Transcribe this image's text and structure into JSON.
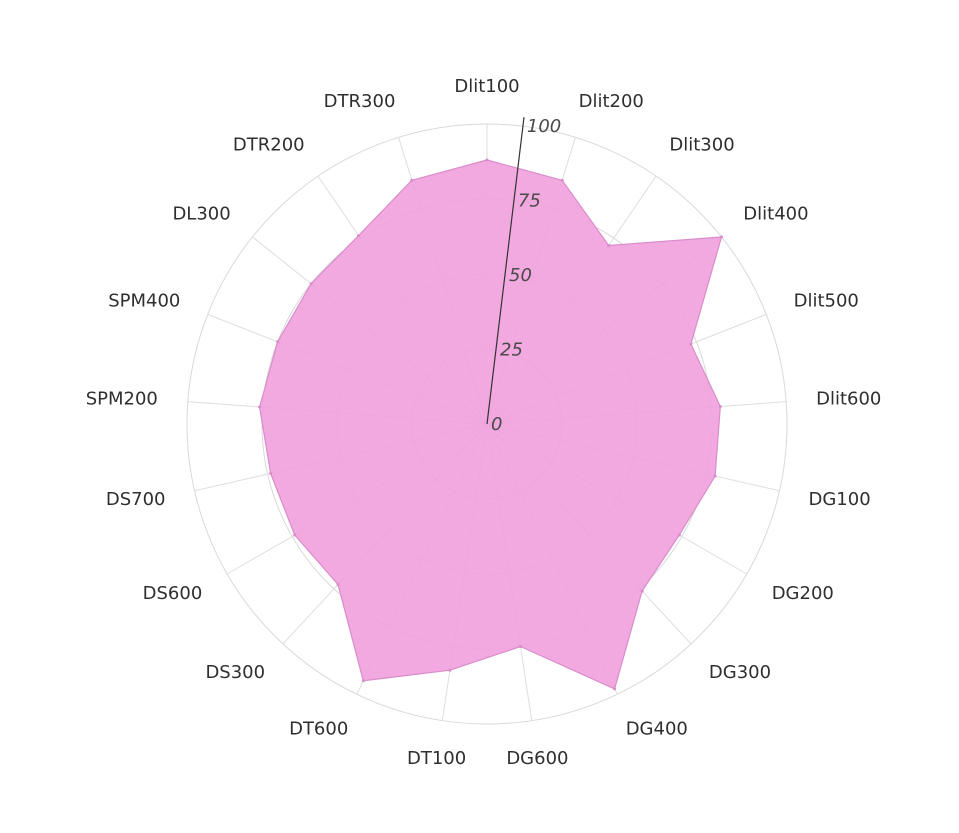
{
  "chart_data": {
    "type": "radar",
    "categories": [
      "Dlit100",
      "Dlit200",
      "Dlit300",
      "Dlit400",
      "Dlit500",
      "Dlit600",
      "DG100",
      "DG200",
      "DG300",
      "DG400",
      "DG600",
      "DT100",
      "DT600",
      "DS300",
      "DS600",
      "DS700",
      "SPM200",
      "SPM400",
      "DL300",
      "DTR200",
      "DTR300"
    ],
    "series": [
      {
        "values": [
          88,
          85,
          72,
          100,
          73,
          78,
          78,
          74,
          76,
          98,
          75,
          83,
          95,
          73,
          74,
          74,
          76,
          75,
          75,
          76,
          85
        ],
        "color": "#f0a0dc"
      }
    ],
    "ticks": [
      "0",
      "25",
      "50",
      "75",
      "100"
    ],
    "rmax": 100,
    "grid": true
  }
}
